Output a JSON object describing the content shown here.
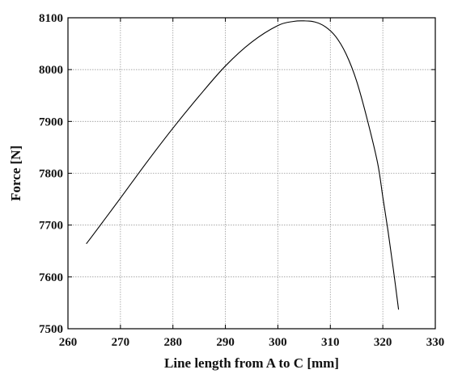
{
  "chart_data": {
    "type": "line",
    "title": "",
    "xlabel": "Line length from A to C [mm]",
    "ylabel": "Force [N]",
    "xlim": [
      260,
      330
    ],
    "ylim": [
      7500,
      8100
    ],
    "xticks": [
      260,
      270,
      280,
      290,
      300,
      310,
      320,
      330
    ],
    "yticks": [
      7500,
      7600,
      7700,
      7800,
      7900,
      8000,
      8100
    ],
    "xtick_labels": [
      "260",
      "270",
      "280",
      "290",
      "300",
      "310",
      "320",
      "330"
    ],
    "ytick_labels": [
      "7500",
      "7600",
      "7700",
      "7800",
      "7900",
      "8000",
      "8100"
    ],
    "grid": true,
    "legend": "none",
    "series": [
      {
        "color": "#000000",
        "x": [
          263.5,
          265,
          270,
          275,
          280,
          285,
          290,
          295,
          300,
          303,
          305,
          307,
          309,
          311,
          313,
          315,
          317,
          319,
          320,
          321,
          322,
          323
        ],
        "y": [
          7664,
          7684,
          7752,
          7821,
          7887,
          7949,
          8007,
          8053,
          8085,
          8093,
          8094,
          8092,
          8083,
          8064,
          8030,
          7978,
          7905,
          7820,
          7754,
          7688,
          7615,
          7537
        ]
      }
    ]
  }
}
